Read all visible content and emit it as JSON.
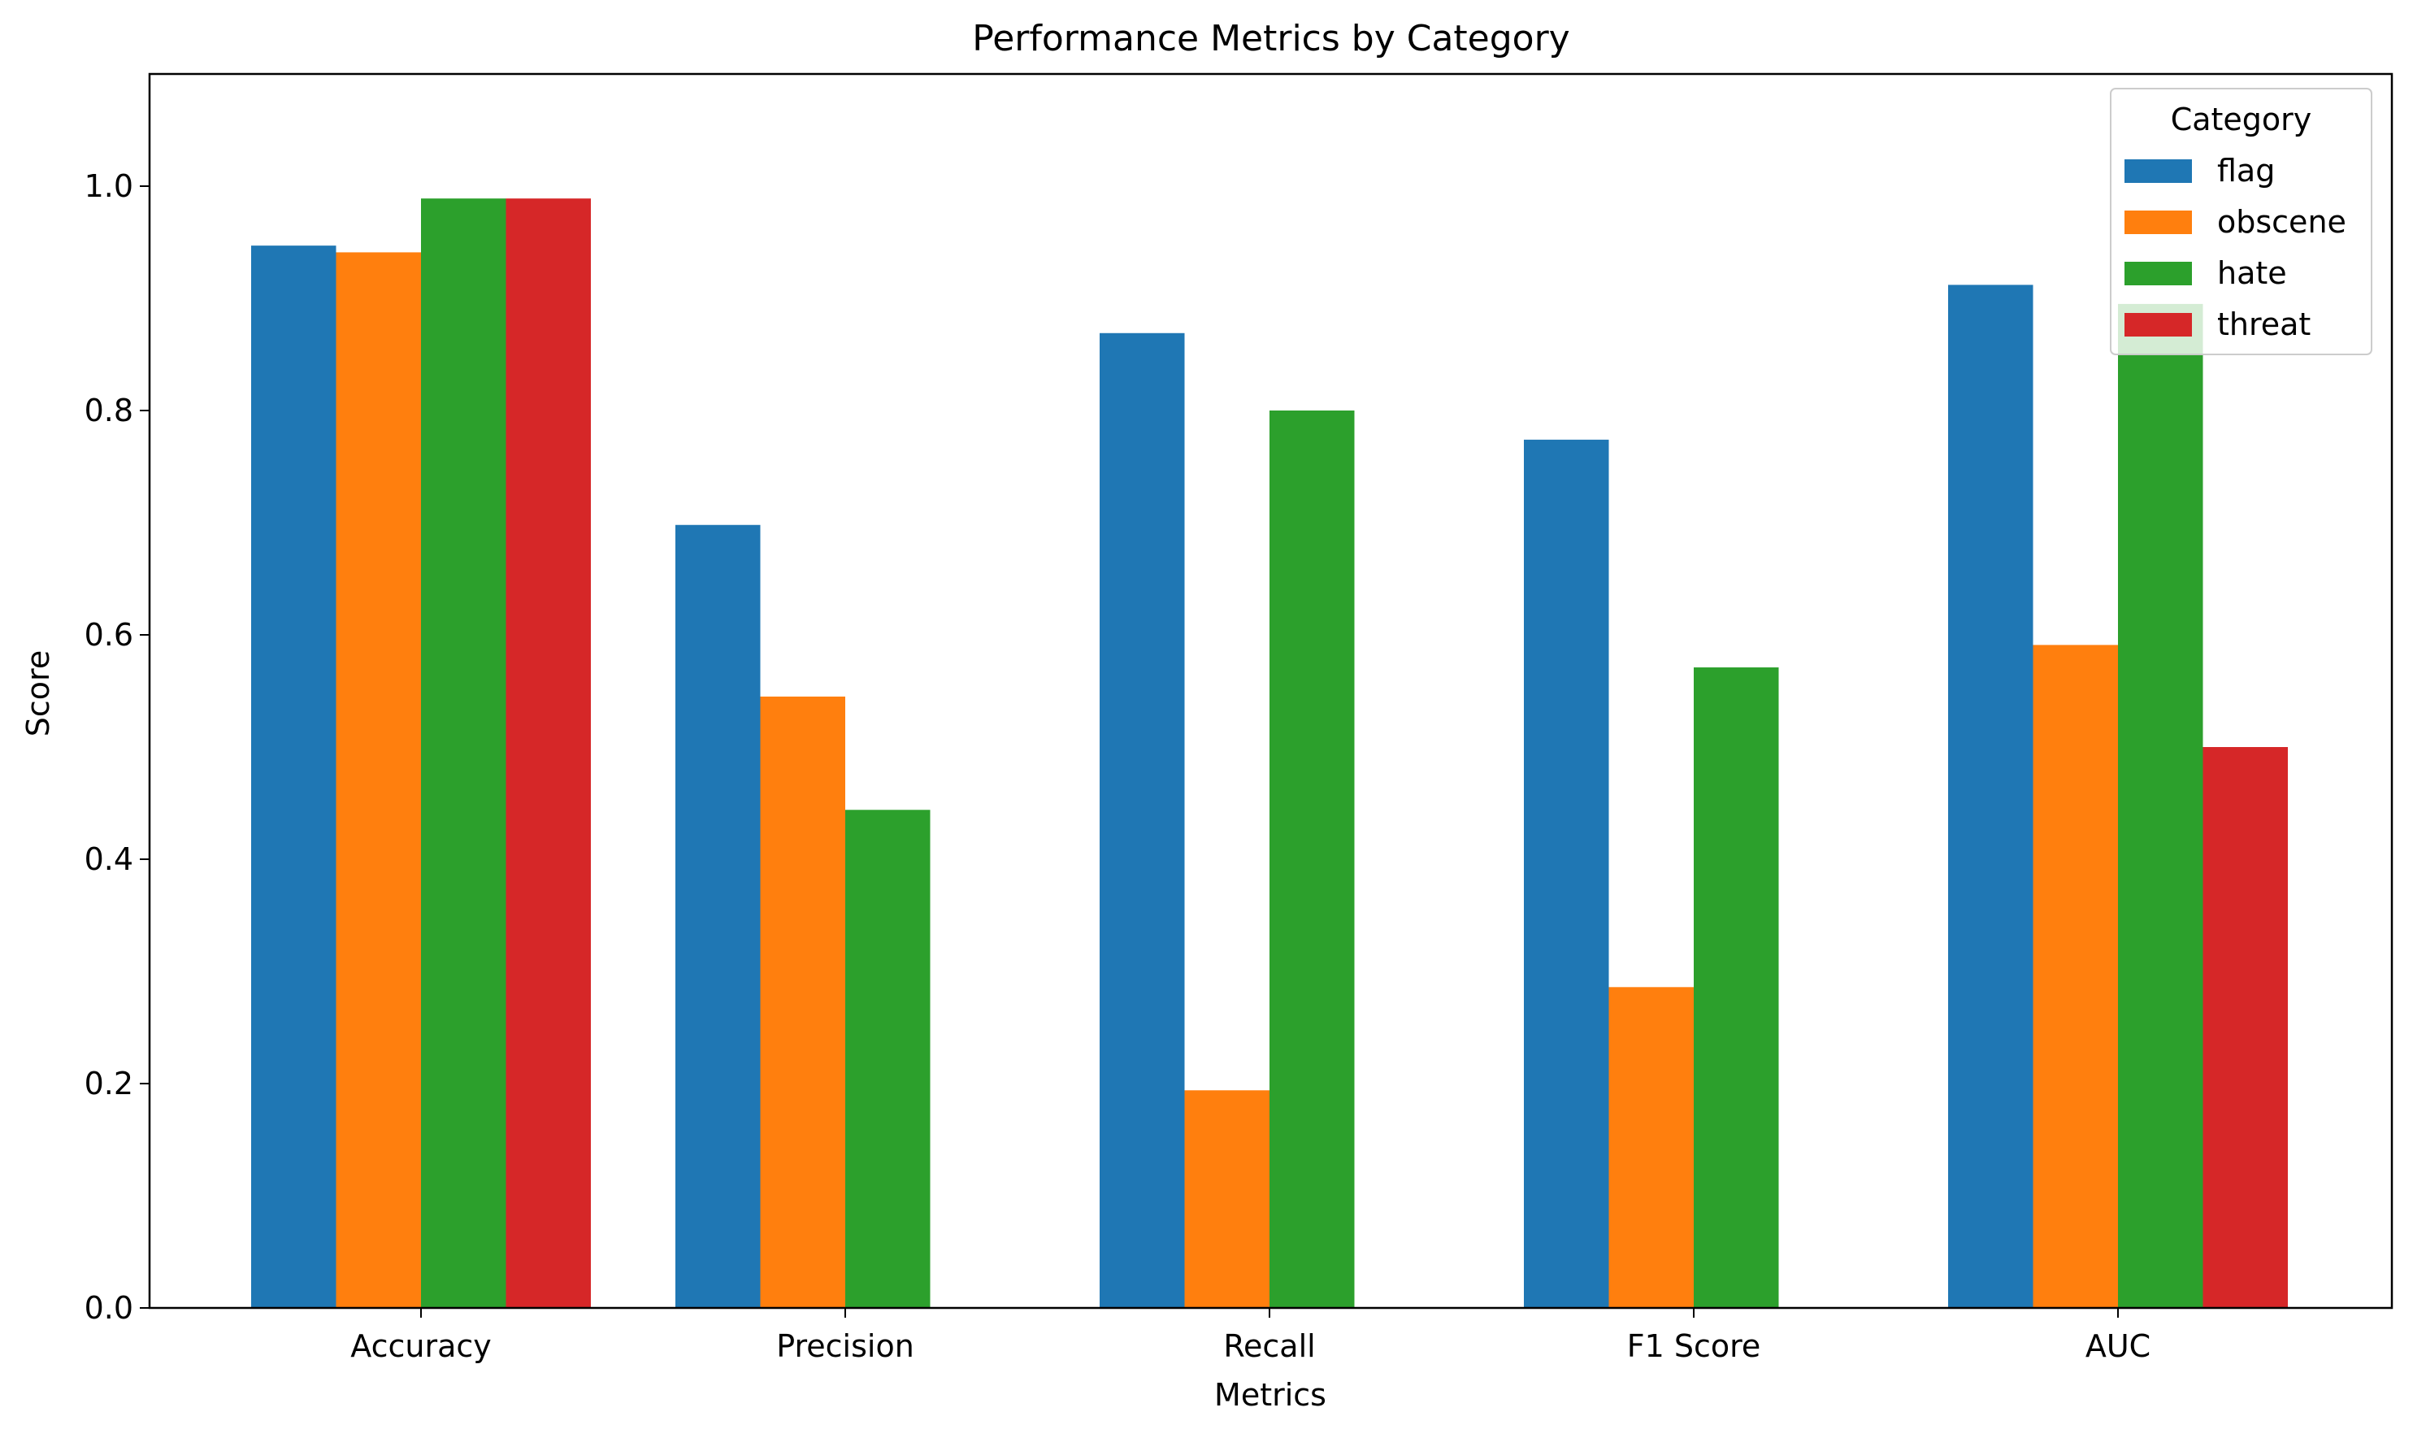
{
  "chart_data": {
    "type": "bar",
    "title": "Performance Metrics by Category",
    "xlabel": "Metrics",
    "ylabel": "Score",
    "categories": [
      "Accuracy",
      "Precision",
      "Recall",
      "F1 Score",
      "AUC"
    ],
    "ylim": [
      0,
      1.1
    ],
    "yticks": [
      0.0,
      0.2,
      0.4,
      0.6,
      0.8,
      1.0
    ],
    "ytick_labels": [
      "0.0",
      "0.2",
      "0.4",
      "0.6",
      "0.8",
      "1.0"
    ],
    "grid": false,
    "legend": {
      "title": "Category",
      "placement": "top-right"
    },
    "series": [
      {
        "name": "flag",
        "color": "#1f77b4",
        "values": [
          0.947,
          0.698,
          0.869,
          0.774,
          0.912
        ]
      },
      {
        "name": "obscene",
        "color": "#ff7f0e",
        "values": [
          0.941,
          0.545,
          0.194,
          0.286,
          0.591
        ]
      },
      {
        "name": "hate",
        "color": "#2ca02c",
        "values": [
          0.989,
          0.444,
          0.8,
          0.571,
          0.895
        ]
      },
      {
        "name": "threat",
        "color": "#d62728",
        "values": [
          0.989,
          0.0,
          0.0,
          0.0,
          0.5
        ]
      }
    ]
  }
}
